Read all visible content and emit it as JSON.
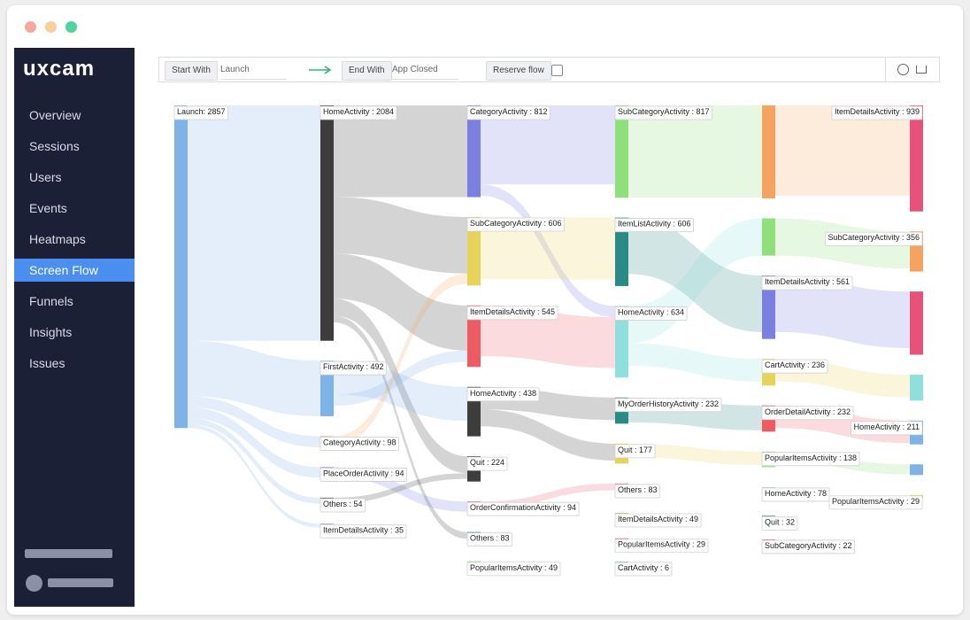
{
  "app": {
    "logo": "uxcam",
    "nav": [
      "Overview",
      "Sessions",
      "Users",
      "Events",
      "Heatmaps",
      "Screen Flow",
      "Funnels",
      "Insights",
      "Issues"
    ],
    "active_nav": 5
  },
  "toolbar": {
    "start_label": "Start With",
    "start_value": "Launch",
    "end_label": "End With",
    "end_value": "App Closed",
    "reverse_label": "Reserve flow"
  },
  "sankey": {
    "columns": [
      [
        {
          "label": "Launch: 2857",
          "value": 2857,
          "color": "#7eb3e8"
        }
      ],
      [
        {
          "label": "HomeActivity : 2084",
          "value": 2084,
          "color": "#3d3d3d"
        },
        {
          "label": "FirstActivity : 492",
          "value": 492,
          "color": "#7eb3e8"
        },
        {
          "label": "CategoryActivity : 98",
          "value": 98,
          "color": "#f4a460"
        },
        {
          "label": "PlaceOrderActivity : 94",
          "value": 94,
          "color": "#7b7fe0"
        },
        {
          "label": "Others : 54",
          "value": 54,
          "color": "#3d3d3d"
        },
        {
          "label": "ItemDetailsActivity : 35",
          "value": 35,
          "color": "#7b7fe0"
        }
      ],
      [
        {
          "label": "CategoryActivity : 812",
          "value": 812,
          "color": "#7b7fe0"
        },
        {
          "label": "SubCategoryActivity : 606",
          "value": 606,
          "color": "#e6d35a"
        },
        {
          "label": "ItemDetailsActivity : 545",
          "value": 545,
          "color": "#ef5b63"
        },
        {
          "label": "HomeActivity : 438",
          "value": 438,
          "color": "#3d3d3d"
        },
        {
          "label": "Quit : 224",
          "value": 224,
          "color": "#3d3d3d"
        },
        {
          "label": "OrderConfirmationActivity : 94",
          "value": 94,
          "color": "#ef5b7a"
        },
        {
          "label": "Others : 83",
          "value": 83,
          "color": "#2a8a85"
        },
        {
          "label": "PopularItemsActivity : 49",
          "value": 49,
          "color": "#8fe07a"
        }
      ],
      [
        {
          "label": "SubCategoryActivity : 817",
          "value": 817,
          "color": "#8fe07a"
        },
        {
          "label": "ItemListActivity : 606",
          "value": 606,
          "color": "#2a8a85"
        },
        {
          "label": "HomeActivity : 634",
          "value": 634,
          "color": "#8fe0dc"
        },
        {
          "label": "MyOrderHistoryActivity : 232",
          "value": 232,
          "color": "#2a8a85"
        },
        {
          "label": "Quit : 177",
          "value": 177,
          "color": "#e6d35a"
        },
        {
          "label": "Others : 83",
          "value": 83,
          "color": "#ef5b63"
        },
        {
          "label": "ItemDetailsActivity : 49",
          "value": 49,
          "color": "#f4a460"
        },
        {
          "label": "PopularItemsActivity : 29",
          "value": 29,
          "color": "#ef5b7a"
        },
        {
          "label": "CartActivity : 6",
          "value": 6,
          "color": "#7eb3e8"
        }
      ],
      [
        {
          "label": null,
          "value": 824,
          "color": "#f4a460"
        },
        {
          "label": null,
          "value": 330,
          "color": "#8fe07a"
        },
        {
          "label": "ItemDetailsActivity : 561",
          "value": 561,
          "color": "#7b7fe0"
        },
        {
          "label": "CartActivity : 236",
          "value": 236,
          "color": "#e6d35a"
        },
        {
          "label": "OrderDetailActivity : 232",
          "value": 232,
          "color": "#ef5b63"
        },
        {
          "label": "PopularItemsActivity : 138",
          "value": 138,
          "color": "#8fe07a"
        },
        {
          "label": "HomeActivity : 78",
          "value": 78,
          "color": "#8fe0dc"
        },
        {
          "label": "Quit : 32",
          "value": 32,
          "color": "#2a8a85"
        },
        {
          "label": "SubCategoryActivity : 22",
          "value": 22,
          "color": "#ef5b7a"
        }
      ],
      [
        {
          "label": "ItemDetailsActivity : 939",
          "value": 939,
          "color": "#e8527a"
        },
        {
          "label": "SubCategoryActivity : 356",
          "value": 356,
          "color": "#f4a460"
        },
        {
          "label": null,
          "value": 560,
          "color": "#e8527a"
        },
        {
          "label": null,
          "value": 230,
          "color": "#8fe0dc"
        },
        {
          "label": "HomeActivity : 211",
          "value": 211,
          "color": "#7eb3e8"
        },
        {
          "label": null,
          "value": 95,
          "color": "#7eb3e8"
        },
        {
          "label": "PopularItemsActivity : 29",
          "value": 29,
          "color": "#e6d35a"
        }
      ]
    ],
    "links": [
      {
        "source": [
          0,
          0
        ],
        "target": [
          1,
          0
        ],
        "value": 2084
      },
      {
        "source": [
          0,
          0
        ],
        "target": [
          1,
          1
        ],
        "value": 492
      },
      {
        "source": [
          0,
          0
        ],
        "target": [
          1,
          2
        ],
        "value": 98
      },
      {
        "source": [
          0,
          0
        ],
        "target": [
          1,
          3
        ],
        "value": 94
      },
      {
        "source": [
          0,
          0
        ],
        "target": [
          1,
          4
        ],
        "value": 54
      },
      {
        "source": [
          0,
          0
        ],
        "target": [
          1,
          5
        ],
        "value": 35
      },
      {
        "source": [
          1,
          0
        ],
        "target": [
          2,
          0
        ],
        "value": 812
      },
      {
        "source": [
          1,
          0
        ],
        "target": [
          2,
          1
        ],
        "value": 500
      },
      {
        "source": [
          1,
          0
        ],
        "target": [
          2,
          2
        ],
        "value": 400
      },
      {
        "source": [
          1,
          0
        ],
        "target": [
          2,
          4
        ],
        "value": 150
      },
      {
        "source": [
          1,
          0
        ],
        "target": [
          2,
          6
        ],
        "value": 60
      },
      {
        "source": [
          1,
          1
        ],
        "target": [
          2,
          3
        ],
        "value": 300
      },
      {
        "source": [
          1,
          1
        ],
        "target": [
          2,
          2
        ],
        "value": 100
      },
      {
        "source": [
          1,
          2
        ],
        "target": [
          2,
          1
        ],
        "value": 90
      },
      {
        "source": [
          1,
          3
        ],
        "target": [
          2,
          5
        ],
        "value": 90
      },
      {
        "source": [
          1,
          4
        ],
        "target": [
          2,
          4
        ],
        "value": 50
      },
      {
        "source": [
          2,
          0
        ],
        "target": [
          3,
          0
        ],
        "value": 700
      },
      {
        "source": [
          2,
          0
        ],
        "target": [
          3,
          2
        ],
        "value": 100
      },
      {
        "source": [
          2,
          1
        ],
        "target": [
          3,
          1
        ],
        "value": 550
      },
      {
        "source": [
          2,
          2
        ],
        "target": [
          3,
          2
        ],
        "value": 450
      },
      {
        "source": [
          2,
          3
        ],
        "target": [
          3,
          3
        ],
        "value": 200
      },
      {
        "source": [
          2,
          3
        ],
        "target": [
          3,
          4
        ],
        "value": 150
      },
      {
        "source": [
          2,
          5
        ],
        "target": [
          3,
          5
        ],
        "value": 60
      },
      {
        "source": [
          3,
          0
        ],
        "target": [
          4,
          0
        ],
        "value": 817
      },
      {
        "source": [
          3,
          1
        ],
        "target": [
          4,
          2
        ],
        "value": 500
      },
      {
        "source": [
          3,
          2
        ],
        "target": [
          4,
          1
        ],
        "value": 330
      },
      {
        "source": [
          3,
          2
        ],
        "target": [
          4,
          3
        ],
        "value": 200
      },
      {
        "source": [
          3,
          3
        ],
        "target": [
          4,
          4
        ],
        "value": 220
      },
      {
        "source": [
          3,
          4
        ],
        "target": [
          4,
          5
        ],
        "value": 120
      },
      {
        "source": [
          4,
          0
        ],
        "target": [
          5,
          0
        ],
        "value": 800
      },
      {
        "source": [
          4,
          1
        ],
        "target": [
          5,
          1
        ],
        "value": 330
      },
      {
        "source": [
          4,
          2
        ],
        "target": [
          5,
          2
        ],
        "value": 500
      },
      {
        "source": [
          4,
          3
        ],
        "target": [
          5,
          3
        ],
        "value": 200
      },
      {
        "source": [
          4,
          4
        ],
        "target": [
          5,
          4
        ],
        "value": 200
      },
      {
        "source": [
          4,
          5
        ],
        "target": [
          5,
          5
        ],
        "value": 90
      }
    ]
  }
}
